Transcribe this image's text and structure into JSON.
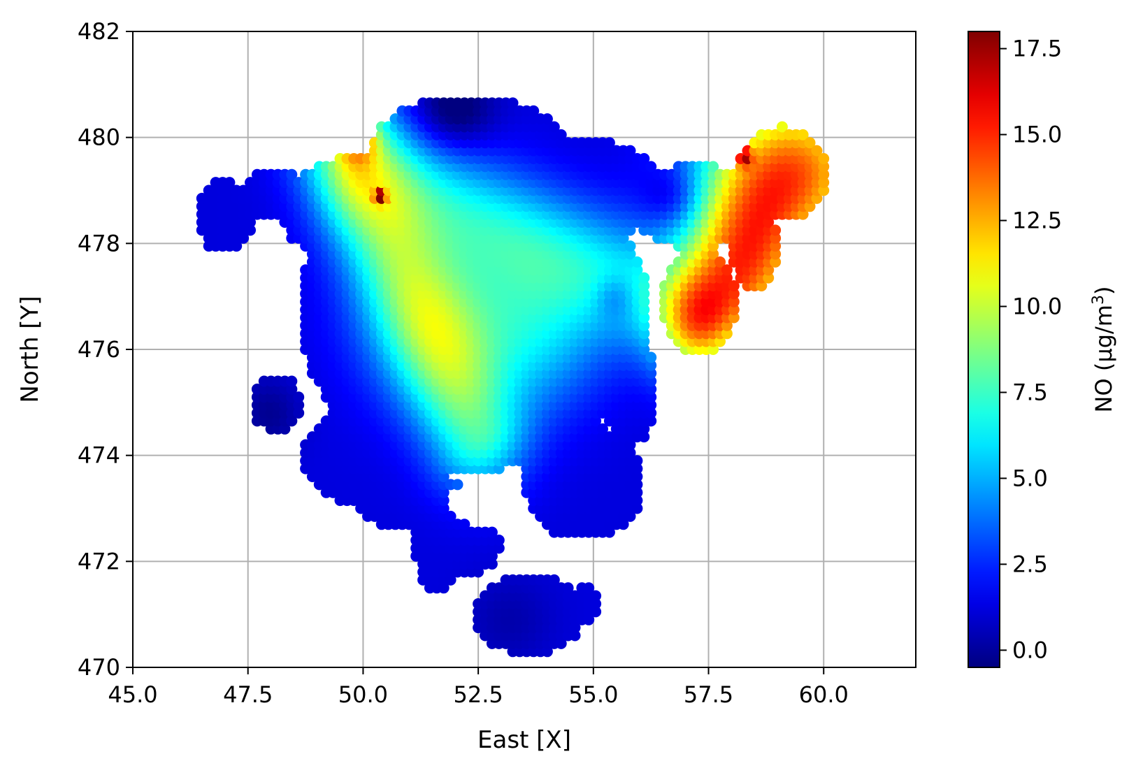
{
  "chart_data": {
    "type": "scatter",
    "subtype": "interpolated-color-map",
    "xlabel": "East [X]",
    "ylabel": "North [Y]",
    "xlim": [
      45.0,
      62.0
    ],
    "ylim": [
      470,
      482
    ],
    "xticks": [
      45.0,
      47.5,
      50.0,
      52.5,
      55.0,
      57.5,
      60.0
    ],
    "xtick_labels": [
      "45.0",
      "47.5",
      "50.0",
      "52.5",
      "55.0",
      "57.5",
      "60.0"
    ],
    "yticks": [
      470,
      472,
      474,
      476,
      478,
      480,
      482
    ],
    "ytick_labels": [
      "470",
      "472",
      "474",
      "476",
      "478",
      "480",
      "482"
    ],
    "grid": true,
    "colormap": "jet",
    "colorbar": {
      "label": "NO (µg/m3)",
      "label_base": "NO (µg/m",
      "label_sup": "3",
      "label_end": ")",
      "range": [
        -0.5,
        18.0
      ],
      "ticks": [
        0.0,
        2.5,
        5.0,
        7.5,
        10.0,
        12.5,
        15.0,
        17.5
      ],
      "tick_labels": [
        "0.0",
        "2.5",
        "5.0",
        "7.5",
        "10.0",
        "12.5",
        "15.0",
        "17.5"
      ]
    },
    "point_spacing": 0.15,
    "region": {
      "include": [
        {
          "cx": 52.4,
          "cy": 476.7,
          "rx": 3.8,
          "ry": 3.0
        },
        {
          "cx": 50.4,
          "cy": 478.6,
          "rx": 2.2,
          "ry": 1.1
        },
        {
          "cx": 52.3,
          "cy": 479.6,
          "rx": 2.2,
          "ry": 1.2
        },
        {
          "cx": 54.6,
          "cy": 479.0,
          "rx": 1.9,
          "ry": 1.0
        },
        {
          "cx": 57.2,
          "cy": 478.7,
          "rx": 1.4,
          "ry": 0.8
        },
        {
          "cx": 57.3,
          "cy": 476.9,
          "rx": 0.8,
          "ry": 1.0
        },
        {
          "cx": 59.1,
          "cy": 479.3,
          "rx": 1.0,
          "ry": 0.9
        },
        {
          "cx": 58.5,
          "cy": 478.0,
          "rx": 0.5,
          "ry": 0.9
        },
        {
          "cx": 47.0,
          "cy": 478.5,
          "rx": 0.6,
          "ry": 0.7
        },
        {
          "cx": 48.1,
          "cy": 478.9,
          "rx": 0.8,
          "ry": 0.5
        },
        {
          "cx": 48.1,
          "cy": 475.0,
          "rx": 0.55,
          "ry": 0.55
        },
        {
          "cx": 50.2,
          "cy": 474.0,
          "rx": 1.5,
          "ry": 1.0
        },
        {
          "cx": 51.0,
          "cy": 473.2,
          "rx": 1.2,
          "ry": 0.6
        },
        {
          "cx": 52.0,
          "cy": 472.3,
          "rx": 1.0,
          "ry": 0.6
        },
        {
          "cx": 51.6,
          "cy": 471.8,
          "rx": 0.4,
          "ry": 0.4
        },
        {
          "cx": 53.6,
          "cy": 471.0,
          "rx": 1.2,
          "ry": 0.75
        },
        {
          "cx": 54.8,
          "cy": 471.2,
          "rx": 0.3,
          "ry": 0.4
        },
        {
          "cx": 54.8,
          "cy": 473.5,
          "rx": 1.3,
          "ry": 1.1
        },
        {
          "cx": 55.8,
          "cy": 475.2,
          "rx": 0.6,
          "ry": 1.0
        }
      ],
      "exclude": [
        {
          "cx": 52.7,
          "cy": 473.1,
          "rx": 0.9,
          "ry": 0.45
        }
      ]
    },
    "field": {
      "base": 1.2,
      "components": [
        {
          "type": "ridge",
          "x1": 49.6,
          "y1": 479.9,
          "x2": 52.5,
          "y2": 474.4,
          "amp": 5.8,
          "w": 0.75
        },
        {
          "type": "ridge",
          "x1": 50.2,
          "y1": 479.4,
          "x2": 56.8,
          "y2": 476.9,
          "amp": 4.6,
          "w": 0.8
        },
        {
          "type": "gauss",
          "cx": 52.2,
          "cy": 476.6,
          "amp": 4.2,
          "sx": 1.5,
          "sy": 1.2
        },
        {
          "type": "gauss",
          "cx": 54.0,
          "cy": 476.2,
          "amp": 2.5,
          "sx": 1.0,
          "sy": 1.0
        },
        {
          "type": "gauss",
          "cx": 59.4,
          "cy": 479.4,
          "amp": 12.3,
          "sx": 1.35,
          "sy": 1.1
        },
        {
          "type": "gauss",
          "cx": 58.3,
          "cy": 477.5,
          "amp": 10.8,
          "sx": 0.9,
          "sy": 1.1
        },
        {
          "type": "gauss",
          "cx": 57.3,
          "cy": 476.4,
          "amp": 6.5,
          "sx": 0.6,
          "sy": 0.7
        },
        {
          "type": "gauss",
          "cx": 58.3,
          "cy": 479.65,
          "amp": 6.5,
          "sx": 0.12,
          "sy": 0.12
        },
        {
          "type": "gauss",
          "cx": 50.4,
          "cy": 478.9,
          "amp": 13.0,
          "sx": 0.08,
          "sy": 0.08
        },
        {
          "type": "gauss",
          "cx": 49.9,
          "cy": 480.0,
          "amp": 5.0,
          "sx": 0.3,
          "sy": 0.3
        },
        {
          "type": "gauss",
          "cx": 56.8,
          "cy": 478.9,
          "amp": -2.0,
          "sx": 0.45,
          "sy": 0.4
        },
        {
          "type": "gauss",
          "cx": 55.5,
          "cy": 477.0,
          "amp": -1.8,
          "sx": 0.3,
          "sy": 0.3
        },
        {
          "type": "gauss",
          "cx": 52.0,
          "cy": 480.5,
          "amp": -2.5,
          "sx": 0.6,
          "sy": 0.5
        },
        {
          "type": "gauss",
          "cx": 48.0,
          "cy": 474.8,
          "amp": -1.4,
          "sx": 0.5,
          "sy": 0.5
        },
        {
          "type": "gauss",
          "cx": 53.2,
          "cy": 470.9,
          "amp": -0.9,
          "sx": 0.7,
          "sy": 0.6
        }
      ]
    }
  }
}
